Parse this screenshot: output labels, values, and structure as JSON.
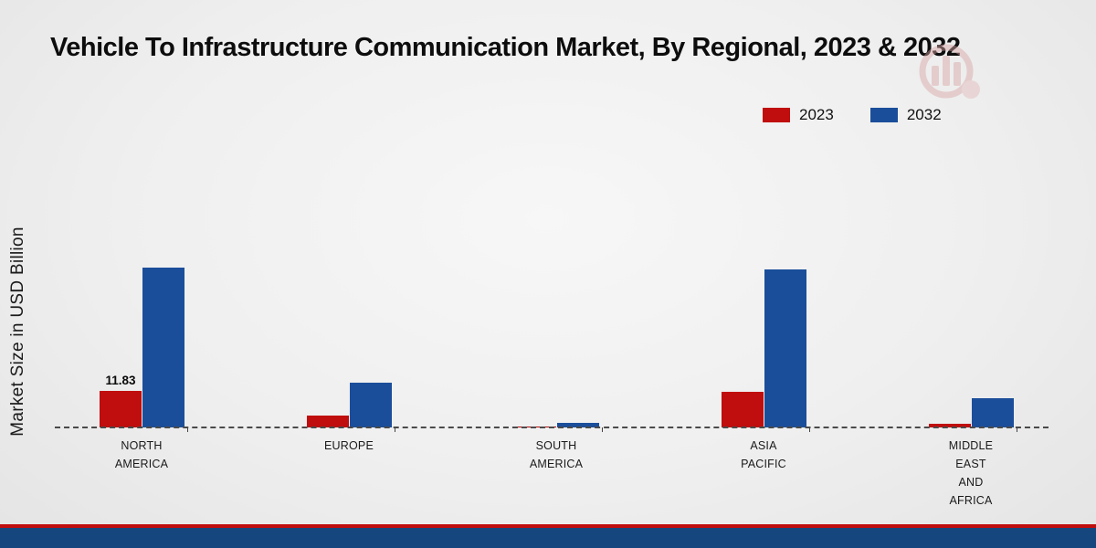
{
  "title": "Vehicle To Infrastructure Communication Market, By Regional, 2023 & 2032",
  "ylabel": "Market Size in USD Billion",
  "legend": [
    {
      "label": "2023",
      "color": "#c00d0d"
    },
    {
      "label": "2032",
      "color": "#1b4e9a"
    }
  ],
  "chart_data": {
    "type": "bar",
    "title": "Vehicle To Infrastructure Communication Market, By Regional, 2023 & 2032",
    "xlabel": "",
    "ylabel": "Market Size in USD Billion",
    "ylim": [
      0,
      55
    ],
    "grid": false,
    "legend_position": "top-right",
    "categories": [
      "NORTH\nAMERICA",
      "EUROPE",
      "SOUTH\nAMERICA",
      "ASIA\nPACIFIC",
      "MIDDLE\nEAST\nAND\nAFRICA"
    ],
    "series": [
      {
        "name": "2023",
        "color": "#c00d0d",
        "values": [
          11.83,
          3.9,
          0.4,
          11.5,
          1.3
        ]
      },
      {
        "name": "2032",
        "color": "#1b4e9a",
        "values": [
          52.0,
          14.5,
          1.6,
          51.5,
          9.5
        ]
      }
    ],
    "annotations": [
      {
        "series": "2023",
        "index": 0,
        "text": "11.83"
      }
    ]
  },
  "footer": {
    "red_stripe_color": "#c00d0d",
    "blue_bar_color": "#15477e"
  }
}
